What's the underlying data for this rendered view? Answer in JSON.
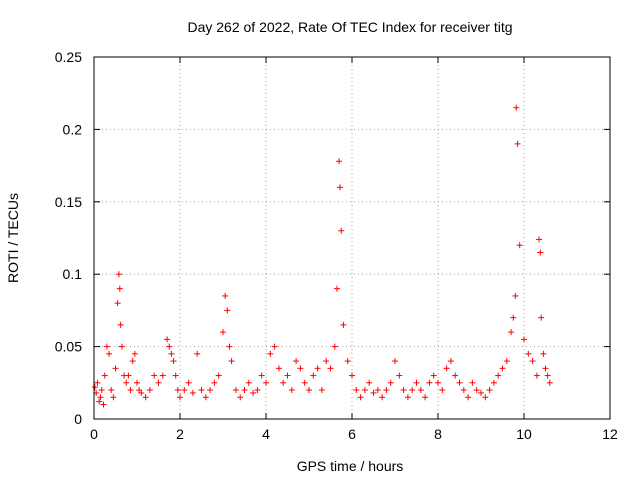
{
  "chart_data": {
    "type": "scatter",
    "title": "Day 262 of 2022, Rate Of TEC Index for receiver titg",
    "xlabel": "GPS time / hours",
    "ylabel": "ROTI / TECUs",
    "xlim": [
      0,
      12
    ],
    "ylim": [
      0,
      0.25
    ],
    "x_ticks": [
      0,
      2,
      4,
      6,
      8,
      10,
      12
    ],
    "y_ticks": [
      0,
      0.05,
      0.1,
      0.15,
      0.2,
      0.25
    ],
    "x_tick_labels": [
      "0",
      "2",
      "4",
      "6",
      "8",
      "10",
      "12"
    ],
    "y_tick_labels": [
      "0",
      "0.05",
      "0.1",
      "0.15",
      "0.2",
      "0.25"
    ],
    "grid": true,
    "marker": "+",
    "series_color": "#ff0000",
    "series": [
      {
        "name": "ROTI",
        "x": [
          0.02,
          0.05,
          0.08,
          0.12,
          0.15,
          0.18,
          0.22,
          0.25,
          0.3,
          0.35,
          0.4,
          0.45,
          0.5,
          0.55,
          0.58,
          0.6,
          0.62,
          0.65,
          0.7,
          0.75,
          0.8,
          0.85,
          0.9,
          0.95,
          1.0,
          1.05,
          1.1,
          1.2,
          1.3,
          1.4,
          1.5,
          1.6,
          1.7,
          1.75,
          1.8,
          1.85,
          1.9,
          1.95,
          2.0,
          2.1,
          2.2,
          2.3,
          2.4,
          2.5,
          2.6,
          2.7,
          2.8,
          2.9,
          3.0,
          3.05,
          3.1,
          3.15,
          3.2,
          3.3,
          3.4,
          3.5,
          3.6,
          3.7,
          3.8,
          3.9,
          4.0,
          4.1,
          4.2,
          4.3,
          4.4,
          4.5,
          4.6,
          4.7,
          4.8,
          4.9,
          5.0,
          5.1,
          5.2,
          5.3,
          5.4,
          5.5,
          5.6,
          5.65,
          5.7,
          5.72,
          5.75,
          5.8,
          5.9,
          6.0,
          6.1,
          6.2,
          6.3,
          6.4,
          6.5,
          6.6,
          6.7,
          6.8,
          6.9,
          7.0,
          7.1,
          7.2,
          7.3,
          7.4,
          7.5,
          7.6,
          7.7,
          7.8,
          7.9,
          8.0,
          8.1,
          8.2,
          8.3,
          8.4,
          8.5,
          8.6,
          8.7,
          8.8,
          8.9,
          9.0,
          9.1,
          9.2,
          9.3,
          9.4,
          9.5,
          9.6,
          9.7,
          9.75,
          9.8,
          9.82,
          9.85,
          9.9,
          10.0,
          10.1,
          10.2,
          10.3,
          10.35,
          10.38,
          10.4,
          10.45,
          10.5,
          10.55,
          10.6
        ],
        "y": [
          0.022,
          0.018,
          0.025,
          0.012,
          0.015,
          0.02,
          0.01,
          0.03,
          0.05,
          0.045,
          0.02,
          0.015,
          0.035,
          0.08,
          0.1,
          0.09,
          0.065,
          0.05,
          0.03,
          0.025,
          0.03,
          0.02,
          0.04,
          0.045,
          0.025,
          0.02,
          0.018,
          0.015,
          0.02,
          0.03,
          0.025,
          0.03,
          0.055,
          0.05,
          0.045,
          0.04,
          0.03,
          0.02,
          0.015,
          0.02,
          0.025,
          0.018,
          0.045,
          0.02,
          0.015,
          0.02,
          0.025,
          0.03,
          0.06,
          0.085,
          0.075,
          0.05,
          0.04,
          0.02,
          0.015,
          0.02,
          0.025,
          0.018,
          0.02,
          0.03,
          0.025,
          0.045,
          0.05,
          0.035,
          0.025,
          0.03,
          0.02,
          0.04,
          0.035,
          0.025,
          0.02,
          0.03,
          0.035,
          0.02,
          0.04,
          0.035,
          0.05,
          0.09,
          0.178,
          0.16,
          0.13,
          0.065,
          0.04,
          0.03,
          0.02,
          0.015,
          0.02,
          0.025,
          0.018,
          0.02,
          0.015,
          0.02,
          0.025,
          0.04,
          0.03,
          0.02,
          0.015,
          0.02,
          0.025,
          0.02,
          0.015,
          0.025,
          0.03,
          0.025,
          0.02,
          0.035,
          0.04,
          0.03,
          0.025,
          0.02,
          0.015,
          0.025,
          0.02,
          0.018,
          0.015,
          0.02,
          0.025,
          0.03,
          0.035,
          0.04,
          0.06,
          0.07,
          0.085,
          0.215,
          0.19,
          0.12,
          0.055,
          0.045,
          0.04,
          0.03,
          0.124,
          0.115,
          0.07,
          0.045,
          0.035,
          0.03,
          0.025
        ]
      }
    ]
  }
}
